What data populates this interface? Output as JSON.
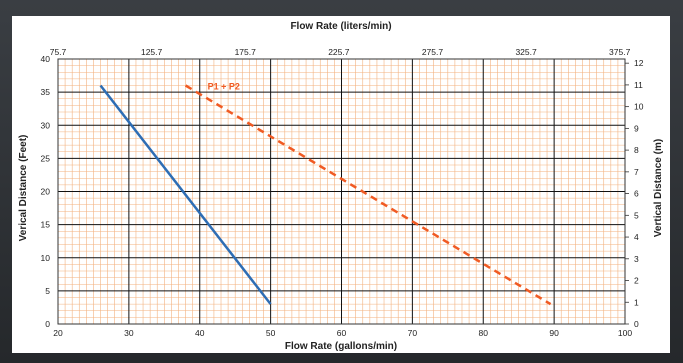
{
  "chart_data": {
    "type": "line",
    "x_bottom": {
      "label": "Flow Rate (gallons/min)",
      "min": 20,
      "max": 100,
      "ticks": [
        "20",
        "30",
        "40",
        "50",
        "60",
        "70",
        "80",
        "90",
        "100"
      ]
    },
    "x_top": {
      "label": "Flow Rate (liters/min)",
      "ticks": [
        "75.7",
        "125.7",
        "175.7",
        "225.7",
        "275.7",
        "325.7",
        "375.7"
      ]
    },
    "y_left": {
      "label": "Verical Distance (Feet)",
      "min": 0,
      "max": 40,
      "ticks": [
        "0",
        "5",
        "10",
        "15",
        "20",
        "25",
        "30",
        "35",
        "40"
      ]
    },
    "y_right": {
      "label": "Vertical Distance (m)",
      "ticks": [
        "0",
        "1",
        "2",
        "3",
        "4",
        "5",
        "6",
        "7",
        "8",
        "9",
        "10",
        "11",
        "12"
      ]
    },
    "grid": true,
    "series": [
      {
        "style": "solid",
        "color": "#2e6db4",
        "points": [
          [
            26,
            36
          ],
          [
            50,
            3
          ]
        ]
      },
      {
        "name": "P1 + P2",
        "style": "dashed",
        "color": "#f05a23",
        "points": [
          [
            38,
            36
          ],
          [
            89.5,
            3
          ]
        ]
      }
    ],
    "colors": {
      "major_grid": "#111111",
      "minor_grid": "#f3b27f"
    }
  }
}
